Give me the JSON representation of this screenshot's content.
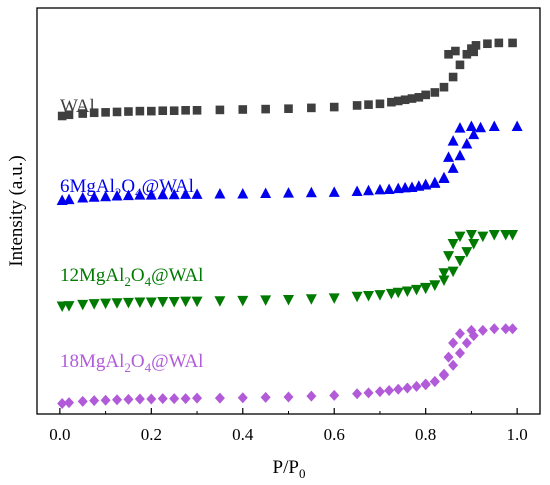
{
  "chart_data": {
    "type": "scatter",
    "xlabel": "P/P0",
    "xlabel_main": "P/P",
    "xlabel_sub": "0",
    "ylabel": "Intensity (a.u.)",
    "xlim": [
      -0.05,
      1.05
    ],
    "ylim": [
      0,
      10
    ],
    "y_ticks_labeled": false,
    "grid": false,
    "x_ticks": [
      "0.0",
      "0.2",
      "0.4",
      "0.6",
      "0.8",
      "1.0"
    ],
    "series": [
      {
        "name": "WAl",
        "name_parts": [
          [
            "WAl",
            ""
          ]
        ],
        "color": "#3f3f3f",
        "marker": "square",
        "adsorption": [
          [
            0.005,
            7.34
          ],
          [
            0.02,
            7.37
          ],
          [
            0.05,
            7.4
          ],
          [
            0.075,
            7.42
          ],
          [
            0.1,
            7.43
          ],
          [
            0.125,
            7.44
          ],
          [
            0.15,
            7.45
          ],
          [
            0.175,
            7.46
          ],
          [
            0.2,
            7.46
          ],
          [
            0.225,
            7.47
          ],
          [
            0.25,
            7.47
          ],
          [
            0.275,
            7.48
          ],
          [
            0.3,
            7.48
          ],
          [
            0.35,
            7.49
          ],
          [
            0.4,
            7.5
          ],
          [
            0.45,
            7.51
          ],
          [
            0.5,
            7.52
          ],
          [
            0.55,
            7.54
          ],
          [
            0.6,
            7.56
          ],
          [
            0.65,
            7.6
          ],
          [
            0.675,
            7.62
          ],
          [
            0.7,
            7.64
          ],
          [
            0.725,
            7.68
          ],
          [
            0.74,
            7.71
          ],
          [
            0.755,
            7.74
          ],
          [
            0.77,
            7.77
          ],
          [
            0.785,
            7.8
          ],
          [
            0.8,
            7.86
          ],
          [
            0.82,
            7.92
          ],
          [
            0.84,
            8.05
          ],
          [
            0.86,
            8.3
          ],
          [
            0.875,
            8.6
          ],
          [
            0.89,
            8.86
          ],
          [
            0.9,
            9.0
          ],
          [
            0.91,
            9.08
          ],
          [
            0.935,
            9.12
          ],
          [
            0.96,
            9.14
          ],
          [
            0.99,
            9.14
          ]
        ],
        "desorption": [
          [
            0.85,
            8.86
          ],
          [
            0.865,
            8.94
          ],
          [
            0.905,
            8.92
          ]
        ]
      },
      {
        "name": "6MgAl2O4@WAl",
        "name_parts": [
          [
            "6MgAl",
            ""
          ],
          [
            "2",
            "sub"
          ],
          [
            "O",
            ""
          ],
          [
            "4",
            "sub"
          ],
          [
            "@WAl",
            ""
          ]
        ],
        "color": "#0000ee",
        "marker": "triangle-up",
        "adsorption": [
          [
            0.005,
            5.26
          ],
          [
            0.02,
            5.28
          ],
          [
            0.05,
            5.32
          ],
          [
            0.075,
            5.34
          ],
          [
            0.1,
            5.35
          ],
          [
            0.125,
            5.37
          ],
          [
            0.15,
            5.38
          ],
          [
            0.175,
            5.39
          ],
          [
            0.2,
            5.39
          ],
          [
            0.225,
            5.4
          ],
          [
            0.25,
            5.4
          ],
          [
            0.275,
            5.41
          ],
          [
            0.3,
            5.41
          ],
          [
            0.35,
            5.42
          ],
          [
            0.4,
            5.42
          ],
          [
            0.45,
            5.43
          ],
          [
            0.5,
            5.44
          ],
          [
            0.55,
            5.45
          ],
          [
            0.6,
            5.46
          ],
          [
            0.65,
            5.48
          ],
          [
            0.675,
            5.5
          ],
          [
            0.7,
            5.52
          ],
          [
            0.72,
            5.53
          ],
          [
            0.74,
            5.55
          ],
          [
            0.755,
            5.57
          ],
          [
            0.77,
            5.58
          ],
          [
            0.785,
            5.61
          ],
          [
            0.8,
            5.65
          ],
          [
            0.82,
            5.7
          ],
          [
            0.84,
            5.8
          ],
          [
            0.86,
            6.05
          ],
          [
            0.875,
            6.36
          ],
          [
            0.89,
            6.65
          ],
          [
            0.905,
            6.88
          ],
          [
            0.92,
            7.05
          ],
          [
            0.95,
            7.08
          ],
          [
            1.0,
            7.08
          ]
        ],
        "desorption": [
          [
            0.8,
            5.64
          ],
          [
            0.82,
            5.68
          ],
          [
            0.84,
            5.82
          ],
          [
            0.85,
            6.32
          ],
          [
            0.86,
            6.72
          ],
          [
            0.875,
            7.04
          ],
          [
            0.9,
            7.08
          ]
        ]
      },
      {
        "name": "12MgAl2O4@WAl",
        "name_parts": [
          [
            "12MgAl",
            ""
          ],
          [
            "2",
            "sub"
          ],
          [
            "O",
            ""
          ],
          [
            "4",
            "sub"
          ],
          [
            "@WAl",
            ""
          ]
        ],
        "color": "#007a00",
        "marker": "triangle-down",
        "adsorption": [
          [
            0.005,
            2.66
          ],
          [
            0.02,
            2.67
          ],
          [
            0.05,
            2.7
          ],
          [
            0.075,
            2.72
          ],
          [
            0.1,
            2.73
          ],
          [
            0.125,
            2.74
          ],
          [
            0.15,
            2.75
          ],
          [
            0.175,
            2.76
          ],
          [
            0.2,
            2.76
          ],
          [
            0.225,
            2.77
          ],
          [
            0.25,
            2.77
          ],
          [
            0.275,
            2.78
          ],
          [
            0.3,
            2.78
          ],
          [
            0.35,
            2.79
          ],
          [
            0.4,
            2.8
          ],
          [
            0.45,
            2.81
          ],
          [
            0.5,
            2.82
          ],
          [
            0.55,
            2.84
          ],
          [
            0.6,
            2.86
          ],
          [
            0.65,
            2.9
          ],
          [
            0.675,
            2.92
          ],
          [
            0.7,
            2.94
          ],
          [
            0.725,
            2.97
          ],
          [
            0.74,
            3.0
          ],
          [
            0.76,
            3.03
          ],
          [
            0.78,
            3.07
          ],
          [
            0.8,
            3.12
          ],
          [
            0.82,
            3.18
          ],
          [
            0.84,
            3.3
          ],
          [
            0.86,
            3.52
          ],
          [
            0.875,
            3.78
          ],
          [
            0.89,
            4.0
          ],
          [
            0.905,
            4.2
          ],
          [
            0.925,
            4.38
          ],
          [
            0.95,
            4.42
          ],
          [
            0.975,
            4.42
          ],
          [
            0.99,
            4.42
          ]
        ],
        "desorption": [
          [
            0.8,
            3.1
          ],
          [
            0.82,
            3.18
          ],
          [
            0.84,
            3.48
          ],
          [
            0.85,
            3.9
          ],
          [
            0.86,
            4.2
          ],
          [
            0.875,
            4.38
          ],
          [
            0.9,
            4.42
          ]
        ]
      },
      {
        "name": "18MgAl2O4@WAl",
        "name_parts": [
          [
            "18MgAl",
            ""
          ],
          [
            "2",
            "sub"
          ],
          [
            "O",
            ""
          ],
          [
            "4",
            "sub"
          ],
          [
            "@WAl",
            ""
          ]
        ],
        "color": "#b15bd8",
        "marker": "diamond",
        "adsorption": [
          [
            0.005,
            0.26
          ],
          [
            0.02,
            0.28
          ],
          [
            0.05,
            0.31
          ],
          [
            0.075,
            0.33
          ],
          [
            0.1,
            0.34
          ],
          [
            0.125,
            0.35
          ],
          [
            0.15,
            0.36
          ],
          [
            0.175,
            0.37
          ],
          [
            0.2,
            0.37
          ],
          [
            0.225,
            0.38
          ],
          [
            0.25,
            0.38
          ],
          [
            0.275,
            0.38
          ],
          [
            0.3,
            0.39
          ],
          [
            0.35,
            0.39
          ],
          [
            0.4,
            0.4
          ],
          [
            0.45,
            0.41
          ],
          [
            0.5,
            0.42
          ],
          [
            0.55,
            0.44
          ],
          [
            0.6,
            0.46
          ],
          [
            0.65,
            0.5
          ],
          [
            0.675,
            0.52
          ],
          [
            0.7,
            0.55
          ],
          [
            0.72,
            0.58
          ],
          [
            0.74,
            0.61
          ],
          [
            0.76,
            0.64
          ],
          [
            0.78,
            0.68
          ],
          [
            0.8,
            0.74
          ],
          [
            0.82,
            0.8
          ],
          [
            0.84,
            0.95
          ],
          [
            0.86,
            1.2
          ],
          [
            0.875,
            1.5
          ],
          [
            0.89,
            1.75
          ],
          [
            0.905,
            1.93
          ],
          [
            0.925,
            2.06
          ],
          [
            0.95,
            2.1
          ],
          [
            0.975,
            2.1
          ],
          [
            0.99,
            2.1
          ]
        ],
        "desorption": [
          [
            0.8,
            0.72
          ],
          [
            0.82,
            0.8
          ],
          [
            0.84,
            0.98
          ],
          [
            0.85,
            1.4
          ],
          [
            0.86,
            1.75
          ],
          [
            0.875,
            1.98
          ],
          [
            0.9,
            2.06
          ]
        ]
      }
    ]
  }
}
